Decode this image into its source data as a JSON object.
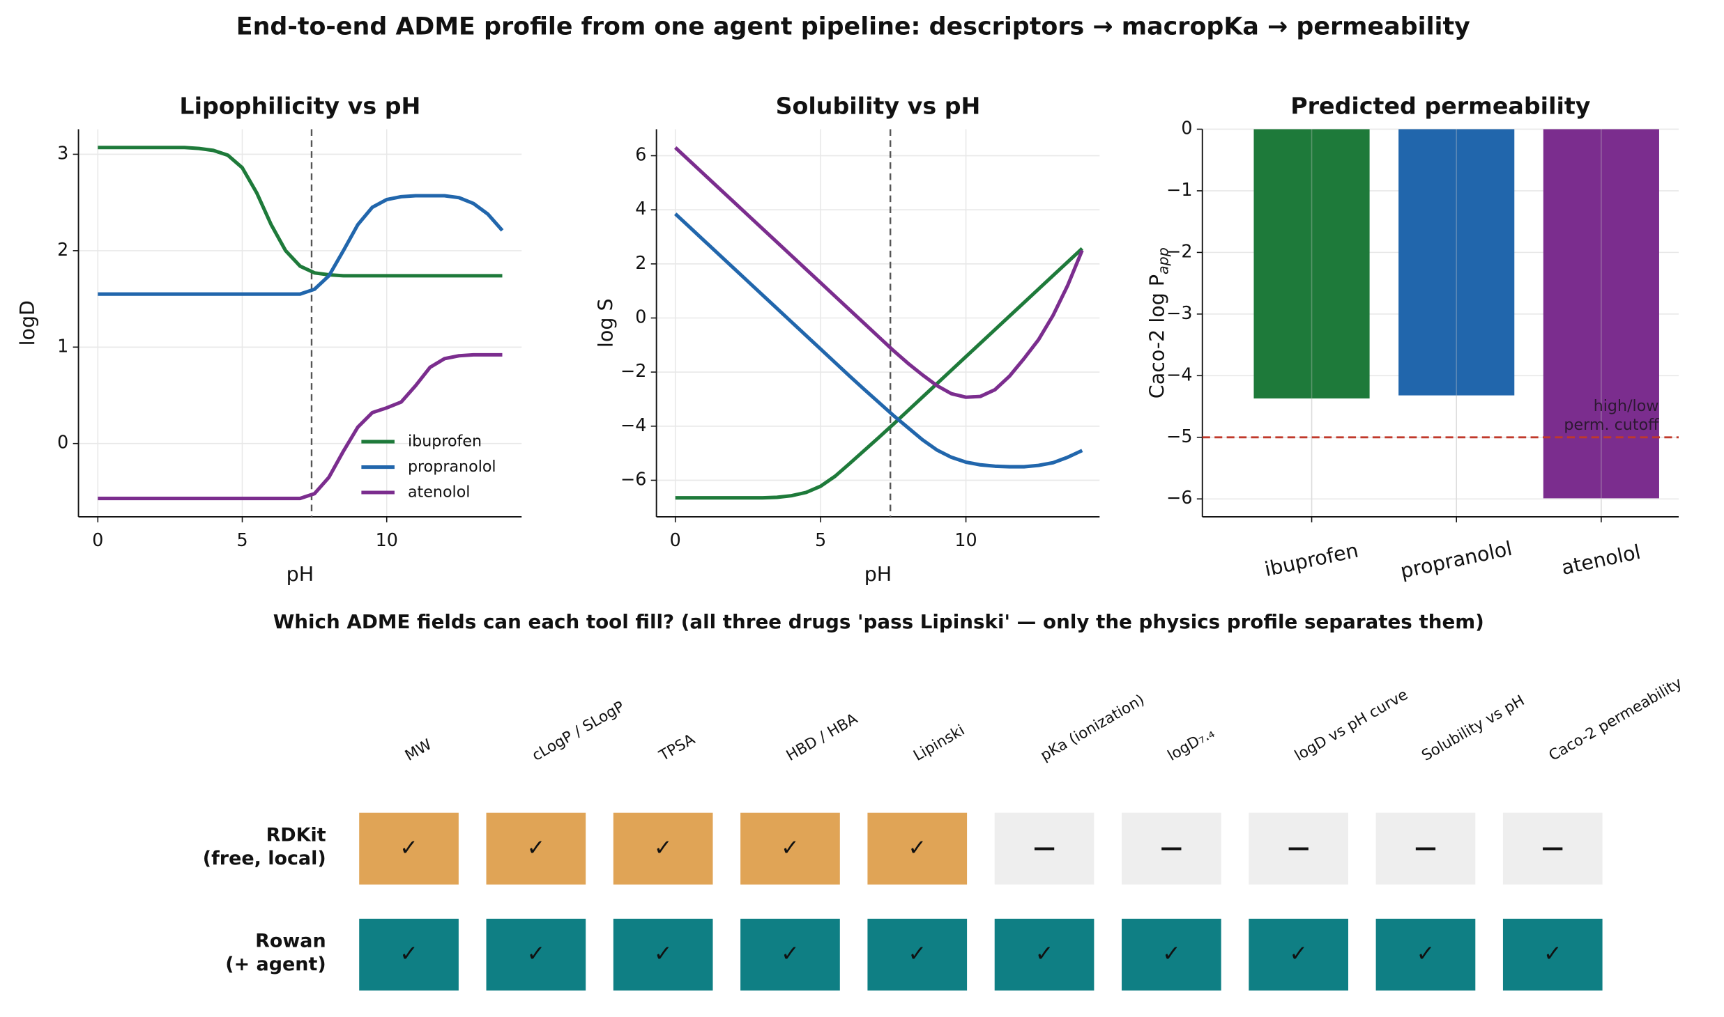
{
  "title": "End-to-end ADME profile from one agent pipeline: descriptors → macropKa → permeability",
  "chart_data": [
    {
      "type": "line",
      "title": "Lipophilicity vs pH",
      "xlabel": "pH",
      "ylabel": "logD",
      "x": [
        0,
        0.5,
        1,
        1.5,
        2,
        2.5,
        3,
        3.5,
        4,
        4.5,
        5,
        5.5,
        6,
        6.5,
        7,
        7.5,
        8,
        8.5,
        9,
        9.5,
        10,
        10.5,
        11,
        11.5,
        12,
        12.5,
        13,
        13.5,
        14
      ],
      "series": [
        {
          "name": "ibuprofen",
          "color": "#1e7a3a",
          "values": [
            3.07,
            3.07,
            3.07,
            3.07,
            3.07,
            3.07,
            3.07,
            3.06,
            3.04,
            2.99,
            2.86,
            2.6,
            2.27,
            2.0,
            1.84,
            1.77,
            1.75,
            1.74,
            1.74,
            1.74,
            1.74,
            1.74,
            1.74,
            1.74,
            1.74,
            1.74,
            1.74,
            1.74,
            1.74
          ]
        },
        {
          "name": "propranolol",
          "color": "#2166ac",
          "values": [
            1.55,
            1.55,
            1.55,
            1.55,
            1.55,
            1.55,
            1.55,
            1.55,
            1.55,
            1.55,
            1.55,
            1.55,
            1.55,
            1.55,
            1.55,
            1.6,
            1.74,
            2.0,
            2.27,
            2.45,
            2.53,
            2.56,
            2.57,
            2.57,
            2.57,
            2.55,
            2.49,
            2.38,
            2.21
          ]
        },
        {
          "name": "atenolol",
          "color": "#7b2d8e",
          "values": [
            -0.57,
            -0.57,
            -0.57,
            -0.57,
            -0.57,
            -0.57,
            -0.57,
            -0.57,
            -0.57,
            -0.57,
            -0.57,
            -0.57,
            -0.57,
            -0.57,
            -0.57,
            -0.52,
            -0.35,
            -0.08,
            0.17,
            0.32,
            0.37,
            0.43,
            0.6,
            0.79,
            0.88,
            0.91,
            0.92,
            0.92,
            0.92
          ]
        }
      ],
      "xlim": [
        -0.67,
        14.67
      ],
      "xticks": [
        0,
        5,
        10
      ],
      "ylim": [
        -0.76,
        3.26
      ],
      "yticks": [
        0,
        1,
        2,
        3
      ],
      "vline": 7.4,
      "grid": true,
      "legend": "lower right"
    },
    {
      "type": "line",
      "title": "Solubility vs pH",
      "xlabel": "pH",
      "ylabel": "log S",
      "x": [
        0,
        0.5,
        1,
        1.5,
        2,
        2.5,
        3,
        3.5,
        4,
        4.5,
        5,
        5.5,
        6,
        6.5,
        7,
        7.5,
        8,
        8.5,
        9,
        9.5,
        10,
        10.5,
        11,
        11.5,
        12,
        12.5,
        13,
        13.5,
        14
      ],
      "series": [
        {
          "name": "ibuprofen",
          "color": "#1e7a3a",
          "values": [
            -6.65,
            -6.65,
            -6.65,
            -6.65,
            -6.65,
            -6.65,
            -6.65,
            -6.63,
            -6.57,
            -6.45,
            -6.22,
            -5.85,
            -5.38,
            -4.9,
            -4.42,
            -3.93,
            -3.43,
            -2.93,
            -2.43,
            -1.93,
            -1.43,
            -0.93,
            -0.43,
            0.07,
            0.57,
            1.07,
            1.57,
            2.07,
            2.57
          ]
        },
        {
          "name": "propranolol",
          "color": "#2166ac",
          "values": [
            3.85,
            3.35,
            2.85,
            2.35,
            1.85,
            1.35,
            0.85,
            0.35,
            -0.15,
            -0.65,
            -1.15,
            -1.65,
            -2.15,
            -2.64,
            -3.12,
            -3.6,
            -4.05,
            -4.5,
            -4.88,
            -5.15,
            -5.33,
            -5.43,
            -5.48,
            -5.5,
            -5.5,
            -5.45,
            -5.35,
            -5.15,
            -4.9
          ]
        },
        {
          "name": "atenolol",
          "color": "#7b2d8e",
          "values": [
            6.3,
            5.8,
            5.3,
            4.8,
            4.3,
            3.8,
            3.3,
            2.8,
            2.3,
            1.8,
            1.3,
            0.8,
            0.3,
            -0.2,
            -0.7,
            -1.2,
            -1.67,
            -2.1,
            -2.5,
            -2.8,
            -2.93,
            -2.9,
            -2.65,
            -2.15,
            -1.5,
            -0.8,
            0.1,
            1.2,
            2.5
          ]
        }
      ],
      "xlim": [
        -0.65,
        14.6
      ],
      "xticks": [
        0,
        5,
        10
      ],
      "ylim": [
        -7.35,
        6.98
      ],
      "yticks": [
        {
          "value": -6,
          "label": "−6"
        },
        {
          "value": -4,
          "label": "−4"
        },
        {
          "value": -2,
          "label": "−2"
        },
        0,
        2,
        4,
        6
      ],
      "vline": 7.4,
      "grid": true
    },
    {
      "type": "bar",
      "title": "Predicted permeability",
      "ylabel": "Caco-2 log P",
      "ylabel_subscript": "app",
      "categories": [
        "ibuprofen",
        "propranolol",
        "atenolol"
      ],
      "colors": [
        "#1e7a3a",
        "#2166ac",
        "#7b2d8e"
      ],
      "values": [
        -4.37,
        -4.32,
        -5.99
      ],
      "ylim": [
        -6.29,
        0
      ],
      "yticks": [
        {
          "value": -6,
          "label": "−6"
        },
        {
          "value": -5,
          "label": "−5"
        },
        {
          "value": -4,
          "label": "−4"
        },
        {
          "value": -3,
          "label": "−3"
        },
        {
          "value": -2,
          "label": "−2"
        },
        {
          "value": -1,
          "label": "−1"
        },
        0
      ],
      "hline": -5,
      "hline_color": "#c0392b",
      "annotation": [
        "high/low",
        "perm. cutoff"
      ],
      "grid": true
    }
  ],
  "adme_table": {
    "title": "Which ADME fields can each tool fill?  (all three drugs 'pass Lipinski' — only the physics profile separates them)",
    "columns": [
      "MW",
      "cLogP / SLogP",
      "TPSA",
      "HBD / HBA",
      "Lipinski",
      "pKa (ionization)",
      "logD₇.₄",
      "logD vs pH curve",
      "Solubility vs pH",
      "Caco-2 permeability"
    ],
    "yes_symbol": "✓",
    "no_symbol": "—",
    "empty_fill": "#eeeeee",
    "rows": [
      {
        "label": [
          "RDKit",
          "(free, local)"
        ],
        "label_color": "#b5762a",
        "fill": "#e0a456",
        "cells": [
          true,
          true,
          true,
          true,
          true,
          false,
          false,
          false,
          false,
          false
        ]
      },
      {
        "label": [
          "Rowan",
          "(+ agent)"
        ],
        "label_color": "#0e5557",
        "fill": "#0f7f84",
        "cells": [
          true,
          true,
          true,
          true,
          true,
          true,
          true,
          true,
          true,
          true
        ]
      }
    ]
  }
}
